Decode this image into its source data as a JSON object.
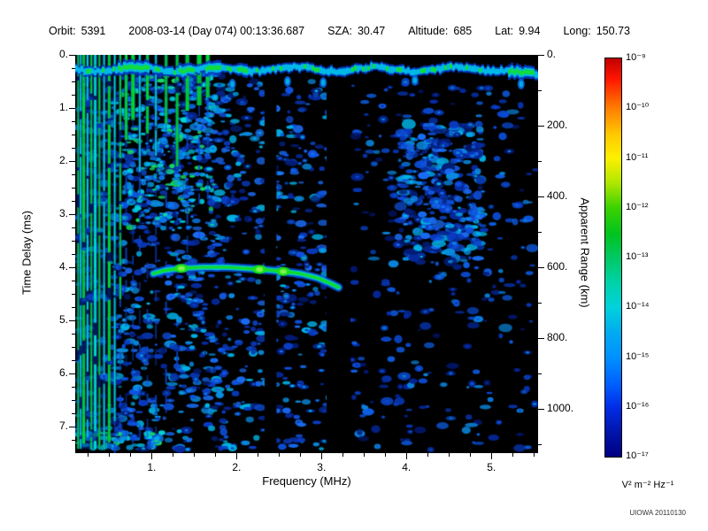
{
  "header": {
    "items": [
      {
        "label": "Orbit:",
        "value": "5391"
      },
      {
        "label": "",
        "value": "2008-03-14 (Day 074) 00:13:36.687"
      },
      {
        "label": "SZA:",
        "value": "30.47"
      },
      {
        "label": "Altitude:",
        "value": "685"
      },
      {
        "label": "Lat:",
        "value": "9.94"
      },
      {
        "label": "Long:",
        "value": "150.73"
      }
    ]
  },
  "footer": {
    "credit": "UIOWA 20110130"
  },
  "chart_data": {
    "type": "heatmap",
    "xlabel": "Frequency (MHz)",
    "ylabel_left": "Time Delay (ms)",
    "ylabel_right": "Apparent Range (km)",
    "x_range_mhz": [
      0.1,
      5.55
    ],
    "x_tick_values": [
      1,
      2,
      3,
      4,
      5
    ],
    "x_tick_labels": [
      "1.",
      "2.",
      "3.",
      "4.",
      "5."
    ],
    "x_minor_step_mhz": 0.25,
    "y_range_ms": [
      0,
      7.5
    ],
    "y_tick_values_ms": [
      0,
      1,
      2,
      3,
      4,
      5,
      6,
      7
    ],
    "y_tick_labels_left": [
      "0.",
      "1.",
      "2.",
      "3.",
      "4.",
      "5.",
      "6.",
      "7."
    ],
    "y_minor_step_ms": 0.25,
    "y_tick_values_km": [
      0,
      200,
      400,
      600,
      800,
      1000
    ],
    "y_tick_labels_right": [
      "0.",
      "200.",
      "400.",
      "600.",
      "800.",
      "1000."
    ],
    "y_minor_step_km": 100,
    "km_per_ms": 150,
    "colorbar": {
      "tick_labels": [
        "10⁻⁹",
        "10⁻¹⁰",
        "10⁻¹¹",
        "10⁻¹²",
        "10⁻¹³",
        "10⁻¹⁴",
        "10⁻¹⁵",
        "10⁻¹⁶",
        "10⁻¹⁷"
      ],
      "units": "V² m⁻² Hz⁻¹",
      "gradient": [
        [
          0,
          "#c00000"
        ],
        [
          0.05,
          "#ff1400"
        ],
        [
          0.125,
          "#ff7d00"
        ],
        [
          0.19,
          "#ffc800"
        ],
        [
          0.25,
          "#fdf000"
        ],
        [
          0.31,
          "#b4e800"
        ],
        [
          0.375,
          "#3cd200"
        ],
        [
          0.44,
          "#00c41e"
        ],
        [
          0.5,
          "#00c864"
        ],
        [
          0.565,
          "#00d2aa"
        ],
        [
          0.625,
          "#00d2dc"
        ],
        [
          0.69,
          "#00aaf0"
        ],
        [
          0.75,
          "#0091ff"
        ],
        [
          0.82,
          "#005eff"
        ],
        [
          0.875,
          "#002de6"
        ],
        [
          0.94,
          "#0014aa"
        ],
        [
          1,
          "#000082"
        ]
      ]
    },
    "features": {
      "background": "#000000",
      "palettes": {
        "blue": [
          "#021c74",
          "#062a9e",
          "#0a3cc4",
          "#0e52e0",
          "#1a6cf4",
          "#0a8ce0",
          "#00b4e8"
        ],
        "dimblue": [
          "#02166a",
          "#04279a",
          "#0736b4",
          "#0a4ad0",
          "#0e5ee4",
          "#0a82d8"
        ],
        "bright": [
          "#0a50dc",
          "#0c78ec",
          "#00a8ec",
          "#00d2d8",
          "#16dc64"
        ]
      },
      "line_colors": {
        "green": "#00dc28",
        "cyan": "#00d8c8",
        "blue": "#0a46d2"
      },
      "stripe_glow": "#0030a0",
      "noise_regions": [
        {
          "f": [
            0.12,
            1.9
          ],
          "t": [
            0.35,
            7.45
          ],
          "count": 950,
          "palette": "blue",
          "size": [
            2,
            5
          ]
        },
        {
          "f": [
            0.6,
            1.75
          ],
          "t": [
            0.3,
            3.3
          ],
          "count": 260,
          "palette": "bright",
          "size": [
            2,
            4
          ]
        },
        {
          "f": [
            1.9,
            3.1
          ],
          "t": [
            0.5,
            7.45
          ],
          "count": 420,
          "palette": "blue",
          "size": [
            2,
            5
          ]
        },
        {
          "f": [
            3.35,
            5.52
          ],
          "t": [
            0.5,
            7.45
          ],
          "count": 320,
          "palette": "dimblue",
          "size": [
            2,
            5
          ]
        },
        {
          "f": [
            3.9,
            4.9
          ],
          "t": [
            1.3,
            3.9
          ],
          "count": 330,
          "palette": "blue",
          "size": [
            2,
            6
          ]
        },
        {
          "f": [
            0.13,
            1.15
          ],
          "t": [
            7.1,
            7.42
          ],
          "count": 70,
          "palette": "bright",
          "size": [
            2,
            4
          ]
        }
      ],
      "dark_columns": [
        [
          2.33,
          2.47
        ],
        [
          3.06,
          3.34
        ]
      ],
      "vertical_lines": [
        {
          "f": 0.135,
          "t0": 0,
          "t1": 7.42,
          "w": 2,
          "c": "green"
        },
        {
          "f": 0.165,
          "t0": 0,
          "t1": 7.42,
          "w": 2,
          "c": "cyan"
        },
        {
          "f": 0.2,
          "t0": 0,
          "t1": 7.42,
          "w": 3,
          "c": "green"
        },
        {
          "f": 0.245,
          "t0": 0,
          "t1": 7.42,
          "w": 2,
          "c": "cyan"
        },
        {
          "f": 0.29,
          "t0": 0,
          "t1": 7.42,
          "w": 2,
          "c": "green"
        },
        {
          "f": 0.335,
          "t0": 0,
          "t1": 7.42,
          "w": 3,
          "c": "cyan"
        },
        {
          "f": 0.385,
          "t0": 0,
          "t1": 7.42,
          "w": 2,
          "c": "green"
        },
        {
          "f": 0.44,
          "t0": 0,
          "t1": 7.42,
          "w": 2,
          "c": "cyan"
        },
        {
          "f": 0.5,
          "t0": 0,
          "t1": 7.42,
          "w": 3,
          "c": "green"
        },
        {
          "f": 0.565,
          "t0": 0,
          "t1": 6.9,
          "w": 2,
          "c": "cyan",
          "tail": 7.4
        },
        {
          "f": 0.63,
          "t0": 0,
          "t1": 4.6,
          "w": 2,
          "c": "green",
          "tail": 7.4
        },
        {
          "f": 0.7,
          "t0": 0,
          "t1": 1.6,
          "w": 3,
          "c": "green",
          "tail": 7.4
        },
        {
          "f": 0.78,
          "t0": 0,
          "t1": 1.2,
          "w": 4,
          "c": "green",
          "tail": 7.4
        },
        {
          "f": 0.86,
          "t0": 0,
          "t1": 2.3,
          "w": 2,
          "c": "cyan",
          "tail": 7.4
        },
        {
          "f": 0.95,
          "t0": 0,
          "t1": 1.5,
          "w": 3,
          "c": "green",
          "tail": 7.4
        },
        {
          "f": 1.05,
          "t0": 0,
          "t1": 1.9,
          "w": 2,
          "c": "cyan",
          "tail": 7.0
        },
        {
          "f": 1.17,
          "t0": 0,
          "t1": 1.3,
          "w": 3,
          "c": "green",
          "tail": 6.5
        },
        {
          "f": 1.3,
          "t0": 0,
          "t1": 2.1,
          "w": 3,
          "c": "green",
          "tail": 6.0
        },
        {
          "f": 1.42,
          "t0": 0,
          "t1": 1.05,
          "w": 4,
          "c": "green",
          "tail": 5.0
        },
        {
          "f": 1.56,
          "t0": 0,
          "t1": 0.95,
          "w": 5,
          "c": "green",
          "tail": 4.0
        },
        {
          "f": 1.66,
          "t0": 0,
          "t1": 0.8,
          "w": 4,
          "c": "green",
          "tail": 3.0
        }
      ],
      "top_band": {
        "t_center": 0.27,
        "green_spans": [
          [
            0.6,
            0.95
          ],
          [
            1.3,
            1.5
          ],
          [
            1.62,
            1.8
          ],
          [
            2.0,
            2.12
          ],
          [
            5.18,
            5.5
          ]
        ],
        "hang_blobs": [
          [
            1.95,
            0.55
          ],
          [
            2.6,
            0.5
          ],
          [
            3.02,
            0.52
          ],
          [
            4.1,
            0.48
          ],
          [
            5.35,
            0.55
          ]
        ],
        "colors": {
          "outer": "#0238c8",
          "mid": "#00b8e8",
          "core": "#10dc3c"
        }
      },
      "echo_trace": {
        "points": [
          [
            1.02,
            4.12
          ],
          [
            1.15,
            4.06
          ],
          [
            1.35,
            4.02
          ],
          [
            1.6,
            4.0
          ],
          [
            1.9,
            4.0
          ],
          [
            2.2,
            4.03
          ],
          [
            2.5,
            4.07
          ],
          [
            2.75,
            4.12
          ],
          [
            2.95,
            4.2
          ],
          [
            3.1,
            4.3
          ],
          [
            3.2,
            4.38
          ]
        ],
        "bright_spots": [
          [
            1.35,
            4.02
          ],
          [
            2.27,
            4.04
          ],
          [
            2.55,
            4.08
          ]
        ],
        "colors": {
          "outer": "#0a50e6",
          "mid": "#00c8e0",
          "core": "#10dc28",
          "spot": "#18e018",
          "spot_core": "#80f050"
        }
      },
      "hang_blob_colors": [
        "#0a5cd8",
        "#00b0e0"
      ]
    }
  }
}
